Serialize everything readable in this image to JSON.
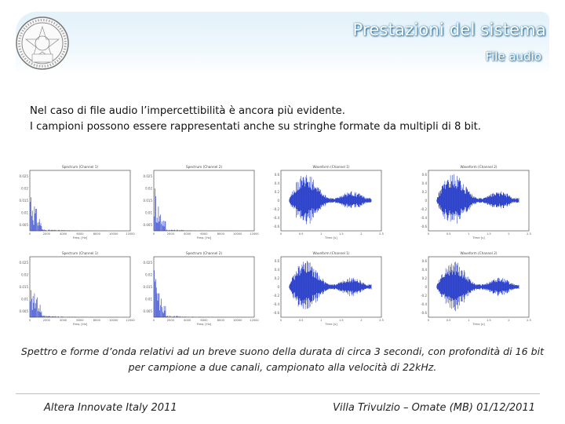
{
  "header": {
    "title": "Prestazioni del sistema",
    "subtitle": "File audio",
    "logo_text": "DTM"
  },
  "intro": {
    "line1": "Nel caso di file audio l’impercettibilità è ancora più evidente.",
    "line2": "I campioni possono essere rappresentati anche su stringhe formate da multipli di 8 bit."
  },
  "figures": {
    "spectrum_color": "#1f36c7",
    "waveform_color": "#1f36c7",
    "panels": [
      {
        "kind": "spectrum",
        "title": "Spectrum (Channel 1)",
        "xlabel": "Freq. [Hz]",
        "yticks": [
          "0.025",
          "0.02",
          "0.015",
          "0.01",
          "0.005"
        ],
        "xticks": [
          "0",
          "2000",
          "4000",
          "6000",
          "8000",
          "10000",
          "12000"
        ]
      },
      {
        "kind": "spectrum",
        "title": "Spectrum (Channel 2)",
        "xlabel": "Freq. [Hz]",
        "yticks": [
          "0.025",
          "0.02",
          "0.015",
          "0.01",
          "0.005"
        ],
        "xticks": [
          "0",
          "2000",
          "4000",
          "6000",
          "8000",
          "10000",
          "12000"
        ]
      },
      {
        "kind": "waveform",
        "title": "Waveform (Channel 1)",
        "xlabel": "Time [s]",
        "yticks": [
          "0.6",
          "0.4",
          "0.2",
          "0",
          "-0.2",
          "-0.4",
          "-0.6"
        ],
        "xticks": [
          "0",
          "0.5",
          "1",
          "1.5",
          "2",
          "2.5"
        ]
      },
      {
        "kind": "waveform",
        "title": "Waveform (Channel 2)",
        "xlabel": "Time [s]",
        "yticks": [
          "0.6",
          "0.4",
          "0.2",
          "0",
          "-0.2",
          "-0.4",
          "-0.6"
        ],
        "xticks": [
          "0",
          "0.5",
          "1",
          "1.5",
          "2",
          "2.5"
        ]
      },
      {
        "kind": "spectrum",
        "title": "Spectrum (Channel 1)",
        "xlabel": "Freq. [Hz]",
        "yticks": [
          "0.025",
          "0.02",
          "0.015",
          "0.01",
          "0.005"
        ],
        "xticks": [
          "0",
          "2000",
          "4000",
          "6000",
          "8000",
          "10000",
          "12000"
        ]
      },
      {
        "kind": "spectrum",
        "title": "Spectrum (Channel 2)",
        "xlabel": "Freq. [Hz]",
        "yticks": [
          "0.025",
          "0.02",
          "0.015",
          "0.01",
          "0.005"
        ],
        "xticks": [
          "0",
          "2000",
          "4000",
          "6000",
          "8000",
          "10000",
          "12000"
        ]
      },
      {
        "kind": "waveform",
        "title": "Waveform (Channel 1)",
        "xlabel": "Time [s]",
        "yticks": [
          "0.6",
          "0.4",
          "0.2",
          "0",
          "-0.2",
          "-0.4",
          "-0.6"
        ],
        "xticks": [
          "0",
          "0.5",
          "1",
          "1.5",
          "2",
          "2.5"
        ]
      },
      {
        "kind": "waveform",
        "title": "Waveform (Channel 2)",
        "xlabel": "Time [s]",
        "yticks": [
          "0.6",
          "0.4",
          "0.2",
          "0",
          "-0.2",
          "-0.4",
          "-0.6"
        ],
        "xticks": [
          "0",
          "0.5",
          "1",
          "1.5",
          "2",
          "2.5"
        ]
      }
    ]
  },
  "caption": {
    "line1": "Spettro e forme d’onda relativi ad un breve suono della durata di circa 3 secondi, con profondità di 16 bit",
    "line2": "per campione a due canali, campionato alla velocità di 22kHz."
  },
  "footer": {
    "left": "Altera Innovate Italy 2011",
    "right": "Villa Trivulzio – Omate (MB) 01/12/2011"
  }
}
